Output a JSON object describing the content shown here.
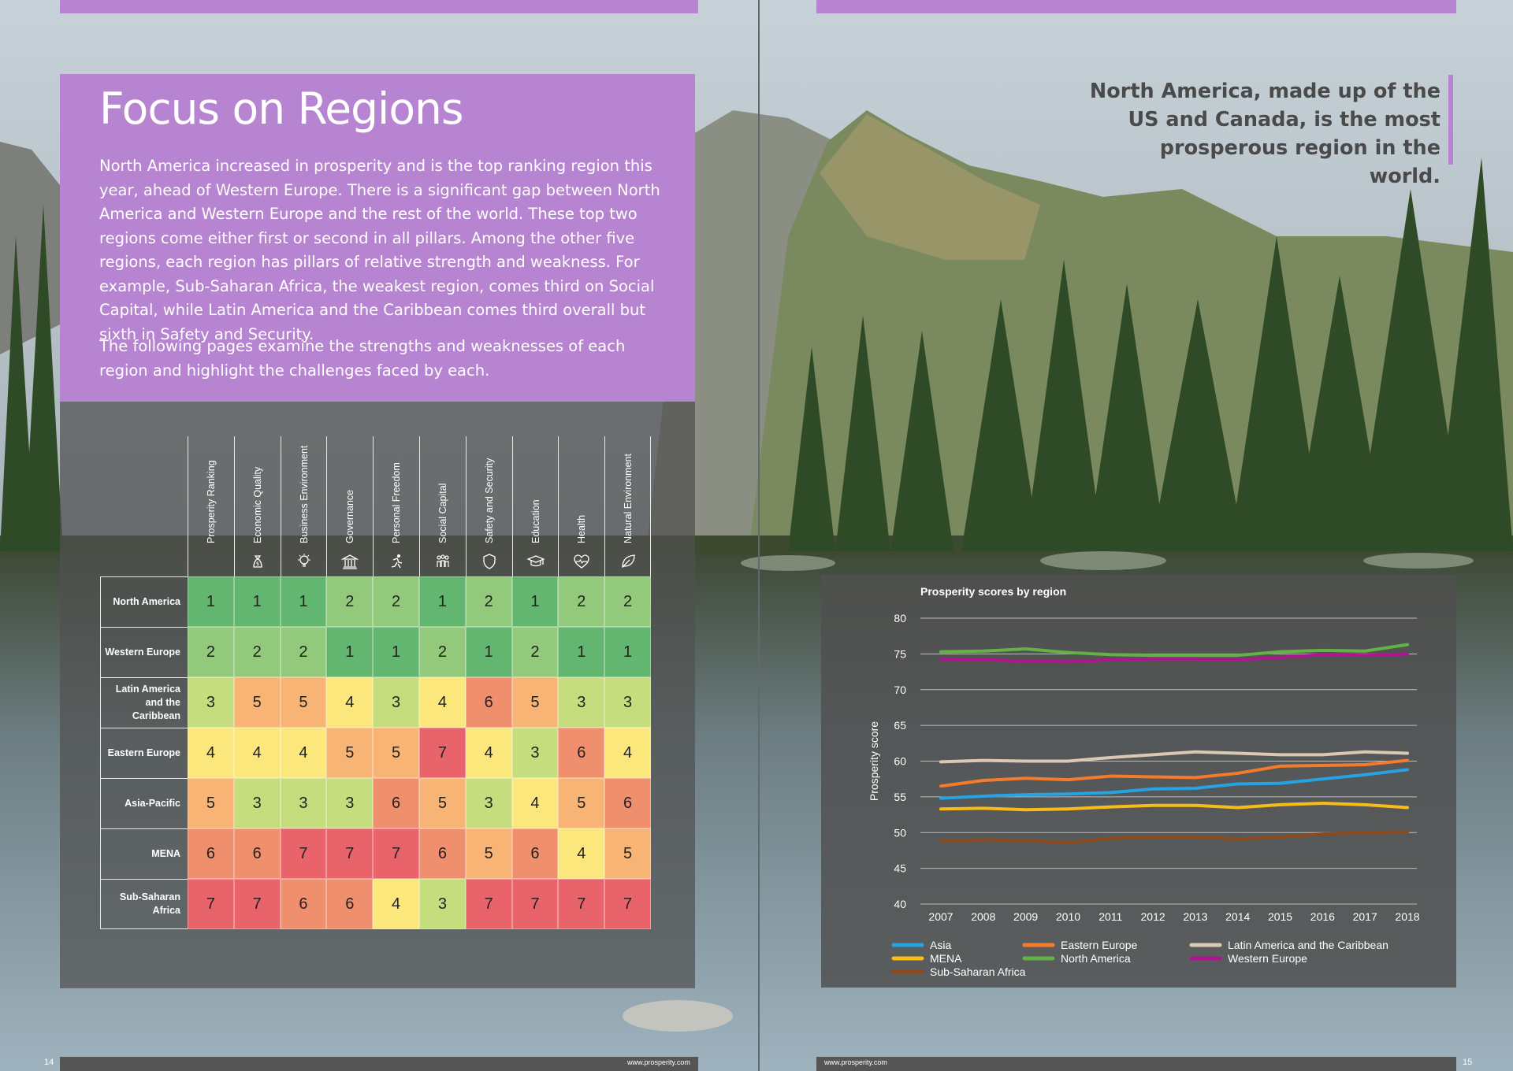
{
  "left_page": {
    "title": "Focus on Regions",
    "paragraphs": [
      "North America increased in prosperity and is the top ranking region this year, ahead of Western Europe. There is a significant gap between North America and Western Europe and the rest of the world. These top two regions come either first or second in all pillars. Among the other five regions, each region has pillars of relative strength and weakness. For example, Sub-Saharan Africa,  the weakest region, comes third on Social Capital, while Latin America and the Caribbean comes third overall but sixth in Safety and Security.",
      "The following pages examine the strengths and weaknesses of each region and highlight the challenges faced by each."
    ],
    "page_number": "14",
    "url": "www.prosperity.com"
  },
  "right_page": {
    "quote": "North America, made up of the US and Canada, is the most prosperous region in the world.",
    "page_number": "15",
    "url": "www.prosperity.com"
  },
  "rank_table": {
    "columns": [
      {
        "label": "Prosperity Ranking",
        "icon": "none"
      },
      {
        "label": "Economic Quality",
        "icon": "money-bag-icon"
      },
      {
        "label": "Business Environment",
        "icon": "lightbulb-icon"
      },
      {
        "label": "Governance",
        "icon": "government-building-icon"
      },
      {
        "label": "Personal Freedom",
        "icon": "running-person-icon"
      },
      {
        "label": "Social Capital",
        "icon": "people-group-icon"
      },
      {
        "label": "Safety and Security",
        "icon": "shield-icon"
      },
      {
        "label": "Education",
        "icon": "graduation-cap-icon"
      },
      {
        "label": "Health",
        "icon": "heart-pulse-icon"
      },
      {
        "label": "Natural Environment",
        "icon": "leaf-icon"
      }
    ],
    "rows": [
      {
        "region": "North America",
        "ranks": [
          "1",
          "1",
          "1",
          "2",
          "2",
          "1",
          "2",
          "1",
          "2",
          "2"
        ]
      },
      {
        "region": "Western Europe",
        "ranks": [
          "2",
          "2",
          "2",
          "1",
          "1",
          "2",
          "1",
          "2",
          "1",
          "1"
        ]
      },
      {
        "region": "Latin America and the Caribbean",
        "ranks": [
          "3",
          "5",
          "5",
          "4",
          "3",
          "4",
          "6",
          "5",
          "3",
          "3"
        ]
      },
      {
        "region": "Eastern Europe",
        "ranks": [
          "4",
          "4",
          "4",
          "5",
          "5",
          "7",
          "4",
          "3",
          "6",
          "4"
        ]
      },
      {
        "region": "Asia-Pacific",
        "ranks": [
          "5",
          "3",
          "3",
          "3",
          "6",
          "5",
          "3",
          "4",
          "5",
          "6"
        ]
      },
      {
        "region": "MENA",
        "ranks": [
          "6",
          "6",
          "7",
          "7",
          "7",
          "6",
          "5",
          "6",
          "4",
          "5"
        ]
      },
      {
        "region": "Sub-Saharan Africa",
        "ranks": [
          "7",
          "7",
          "6",
          "6",
          "4",
          "3",
          "7",
          "7",
          "7",
          "7"
        ]
      }
    ],
    "rank_colors": {
      "1": "#62b66f",
      "2": "#93c97a",
      "3": "#c6dd7e",
      "4": "#fbe77c",
      "5": "#f8b474",
      "6": "#f08f6d",
      "7": "#e9636a"
    }
  },
  "chart_data": {
    "type": "line",
    "title": "Prosperity scores by region",
    "ylabel": "Prosperity score",
    "xlabel": "",
    "x": [
      "2007",
      "2008",
      "2009",
      "2010",
      "2011",
      "2012",
      "2013",
      "2014",
      "2015",
      "2016",
      "2017",
      "2018"
    ],
    "ylim": [
      40,
      80
    ],
    "yticks": [
      40,
      45,
      50,
      55,
      60,
      65,
      70,
      75,
      80
    ],
    "grid": true,
    "legend_position": "bottom",
    "series": [
      {
        "name": "Asia",
        "color": "#27a3e3",
        "values": [
          54.8,
          55.1,
          55.3,
          55.4,
          55.6,
          56.1,
          56.2,
          56.8,
          56.9,
          57.5,
          58.1,
          58.8
        ]
      },
      {
        "name": "Eastern Europe",
        "color": "#f47b2a",
        "values": [
          56.5,
          57.3,
          57.6,
          57.4,
          57.9,
          57.8,
          57.7,
          58.3,
          59.3,
          59.4,
          59.5,
          60.1
        ]
      },
      {
        "name": "Latin America and the Caribbean",
        "color": "#d9c9b2",
        "values": [
          59.9,
          60.1,
          60.0,
          60.0,
          60.5,
          60.9,
          61.3,
          61.1,
          60.9,
          60.9,
          61.3,
          61.1
        ]
      },
      {
        "name": "MENA",
        "color": "#f6bd16",
        "values": [
          53.3,
          53.4,
          53.2,
          53.3,
          53.6,
          53.8,
          53.8,
          53.5,
          53.9,
          54.1,
          53.9,
          53.5
        ]
      },
      {
        "name": "North America",
        "color": "#62b246",
        "values": [
          75.3,
          75.4,
          75.7,
          75.2,
          74.9,
          74.8,
          74.8,
          74.8,
          75.3,
          75.5,
          75.4,
          76.3
        ]
      },
      {
        "name": "Western Europe",
        "color": "#b0148f",
        "values": [
          74.3,
          74.2,
          74.0,
          73.9,
          74.2,
          74.3,
          74.3,
          74.2,
          74.5,
          74.9,
          74.8,
          75.0
        ]
      },
      {
        "name": "Sub-Saharan Africa",
        "color": "#8c4a1e",
        "values": [
          48.8,
          49.0,
          48.9,
          48.6,
          49.2,
          49.4,
          49.4,
          49.1,
          49.4,
          49.8,
          50.0,
          50.1
        ]
      }
    ]
  }
}
